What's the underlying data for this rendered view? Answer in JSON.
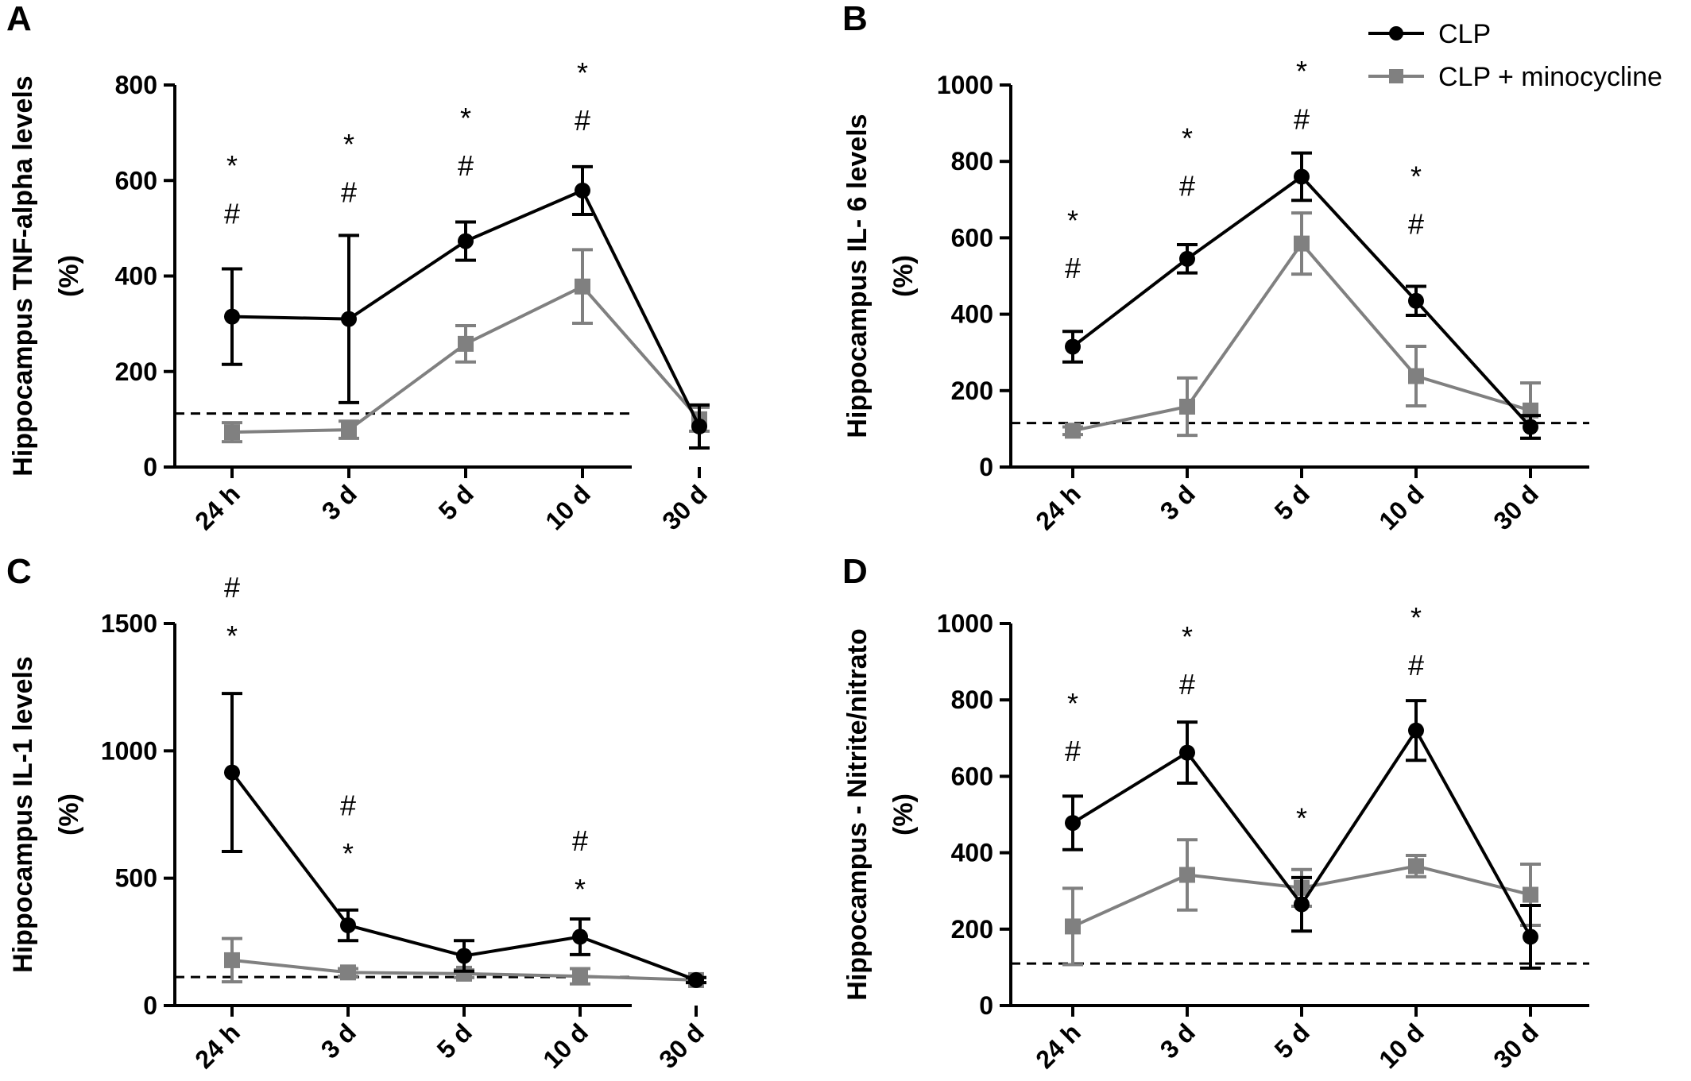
{
  "legend": {
    "entries": [
      {
        "name": "CLP",
        "color": "#000000",
        "marker": "circle"
      },
      {
        "name": "CLP + minocycline",
        "color": "#808080",
        "marker": "square"
      }
    ],
    "position": "top-right"
  },
  "chart_data": [
    {
      "panel": "A",
      "type": "line",
      "categories": [
        "24 h",
        "3 d",
        "5 d",
        "10 d",
        "30 d"
      ],
      "ylabel": [
        "Hippocampus TNF-alpha levels",
        "(%)"
      ],
      "ylim": [
        0,
        800
      ],
      "yticks": [
        0,
        200,
        400,
        600,
        800
      ],
      "reference_line": 112,
      "series": [
        {
          "name": "CLP",
          "values": [
            315,
            310,
            473,
            579,
            85
          ],
          "errors": [
            100,
            175,
            40,
            50,
            45
          ]
        },
        {
          "name": "CLP + minocycline",
          "values": [
            73,
            78,
            258,
            378,
            100
          ],
          "errors": [
            20,
            18,
            38,
            77,
            25
          ]
        }
      ],
      "annotations": [
        {
          "category": "24 h",
          "labels": [
            "*",
            "#"
          ],
          "y": [
            630,
            530
          ]
        },
        {
          "category": "3 d",
          "labels": [
            "*",
            "#"
          ],
          "y": [
            675,
            575
          ]
        },
        {
          "category": "5 d",
          "labels": [
            "*",
            "#"
          ],
          "y": [
            730,
            630
          ]
        },
        {
          "category": "10 d",
          "labels": [
            "*",
            "#"
          ],
          "y": [
            825,
            725
          ]
        }
      ]
    },
    {
      "panel": "B",
      "type": "line",
      "categories": [
        "24 h",
        "3 d",
        "5 d",
        "10 d",
        "30 d"
      ],
      "ylabel": [
        "Hippocampus IL- 6 levels",
        "(%)"
      ],
      "ylim": [
        0,
        1000
      ],
      "yticks": [
        0,
        200,
        400,
        600,
        800,
        1000
      ],
      "reference_line": 115,
      "series": [
        {
          "name": "CLP",
          "values": [
            315,
            545,
            760,
            435,
            105
          ],
          "errors": [
            40,
            37,
            62,
            38,
            30
          ]
        },
        {
          "name": "CLP + minocycline",
          "values": [
            95,
            158,
            585,
            238,
            148
          ],
          "errors": [
            10,
            75,
            80,
            78,
            72
          ]
        }
      ],
      "annotations": [
        {
          "category": "24 h",
          "labels": [
            "*",
            "#"
          ],
          "y": [
            645,
            520
          ]
        },
        {
          "category": "3 d",
          "labels": [
            "*",
            "#"
          ],
          "y": [
            860,
            735
          ]
        },
        {
          "category": "5 d",
          "labels": [
            "*",
            "#"
          ],
          "y": [
            1035,
            910
          ]
        },
        {
          "category": "10 d",
          "labels": [
            "*",
            "#"
          ],
          "y": [
            760,
            635
          ]
        }
      ]
    },
    {
      "panel": "C",
      "type": "line",
      "categories": [
        "24 h",
        "3 d",
        "5 d",
        "10 d",
        "30 d"
      ],
      "ylabel": [
        "Hippocampus IL-1 levels",
        "(%)"
      ],
      "ylim": [
        0,
        1500
      ],
      "yticks": [
        0,
        500,
        1000,
        1500
      ],
      "reference_line": 112,
      "series": [
        {
          "name": "CLP",
          "values": [
            915,
            315,
            195,
            270,
            100
          ],
          "errors": [
            310,
            60,
            60,
            70,
            10
          ]
        },
        {
          "name": "CLP + minocycline",
          "values": [
            178,
            130,
            125,
            115,
            100
          ],
          "errors": [
            85,
            15,
            15,
            30,
            10
          ]
        }
      ],
      "annotations": [
        {
          "category": "24 h",
          "labels": [
            "#",
            "*"
          ],
          "y": [
            1640,
            1450
          ]
        },
        {
          "category": "3 d",
          "labels": [
            "#",
            "*"
          ],
          "y": [
            785,
            595
          ]
        },
        {
          "category": "10 d",
          "labels": [
            "#",
            "*"
          ],
          "y": [
            645,
            455
          ]
        }
      ]
    },
    {
      "panel": "D",
      "type": "line",
      "categories": [
        "24 h",
        "3 d",
        "5 d",
        "10 d",
        "30 d"
      ],
      "ylabel": [
        "Hippocampus - Nitrite/nitrato",
        "(%)"
      ],
      "ylim": [
        0,
        1000
      ],
      "yticks": [
        0,
        200,
        400,
        600,
        800,
        1000
      ],
      "reference_line": 110,
      "series": [
        {
          "name": "CLP",
          "values": [
            478,
            662,
            265,
            720,
            180
          ],
          "errors": [
            70,
            80,
            70,
            78,
            82
          ]
        },
        {
          "name": "CLP + minocycline",
          "values": [
            207,
            342,
            308,
            365,
            290
          ],
          "errors": [
            100,
            92,
            48,
            28,
            80
          ]
        }
      ],
      "annotations": [
        {
          "category": "24 h",
          "labels": [
            "*",
            "#"
          ],
          "y": [
            790,
            665
          ]
        },
        {
          "category": "3 d",
          "labels": [
            "*",
            "#"
          ],
          "y": [
            965,
            840
          ]
        },
        {
          "category": "5 d",
          "labels": [
            "*"
          ],
          "y": [
            490
          ]
        },
        {
          "category": "10 d",
          "labels": [
            "*",
            "#"
          ],
          "y": [
            1015,
            890
          ]
        }
      ]
    }
  ]
}
